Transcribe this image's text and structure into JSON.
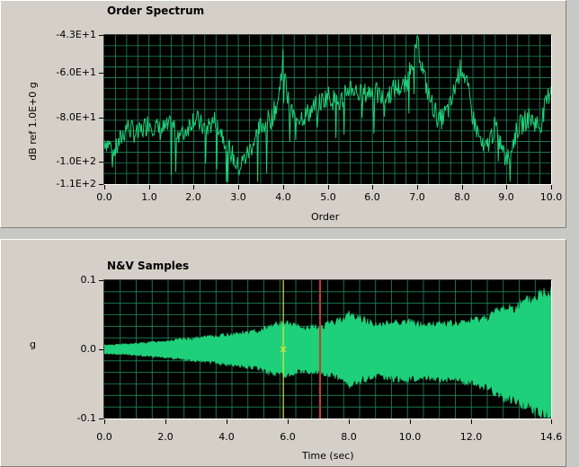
{
  "order_spectrum": {
    "title": "Order Spectrum",
    "ylabel": "dB ref 1.0E+0 g",
    "xlabel": "Order",
    "yticks": [
      "-4.3E+1",
      "-6.0E+1",
      "-8.0E+1",
      "-1.0E+2",
      "-1.1E+2"
    ],
    "xticks": [
      "0.0",
      "1.0",
      "2.0",
      "3.0",
      "4.0",
      "5.0",
      "6.0",
      "7.0",
      "8.0",
      "9.0",
      "10.0"
    ],
    "trace_color": "#1fd07a",
    "grid_color": "#1f8a5a"
  },
  "nv_samples": {
    "title": "N&V Samples",
    "ylabel": "g",
    "xlabel": "Time (sec)",
    "yticks": [
      "0.1",
      "0.0",
      "-0.1"
    ],
    "xticks": [
      "0.0",
      "2.0",
      "4.0",
      "6.0",
      "8.0",
      "10.0",
      "12.0",
      "14.6"
    ],
    "fill_color": "#1fd07a",
    "grid_color": "#1f8a5a",
    "cursor1_color": "#e0e040",
    "cursor2_color": "#c04030"
  },
  "chart_data": [
    {
      "type": "line",
      "title": "Order Spectrum",
      "xlabel": "Order",
      "ylabel": "dB ref 1.0E+0 g",
      "xlim": [
        0,
        10
      ],
      "ylim": [
        -110,
        -43
      ],
      "grid": true,
      "series": [
        {
          "x": [
            0,
            0.25,
            0.5,
            0.75,
            1,
            1.25,
            1.5,
            1.75,
            2,
            2.25,
            2.5,
            2.75,
            3,
            3.25,
            3.5,
            3.75,
            3.9,
            4,
            4.1,
            4.25,
            4.5,
            4.75,
            5,
            5.25,
            5.5,
            5.75,
            6,
            6.25,
            6.5,
            6.75,
            6.9,
            7,
            7.1,
            7.25,
            7.5,
            7.75,
            7.9,
            8,
            8.1,
            8.25,
            8.5,
            8.75,
            9,
            9.25,
            9.5,
            9.75,
            10
          ],
          "y": [
            -90,
            -95,
            -84,
            -88,
            -82,
            -86,
            -84,
            -88,
            -80,
            -85,
            -81,
            -92,
            -103,
            -95,
            -84,
            -80,
            -72,
            -52,
            -72,
            -80,
            -79,
            -75,
            -70,
            -74,
            -66,
            -70,
            -68,
            -72,
            -67,
            -66,
            -54,
            -45,
            -56,
            -70,
            -82,
            -75,
            -62,
            -57,
            -64,
            -80,
            -96,
            -84,
            -100,
            -85,
            -80,
            -84,
            -66
          ]
        }
      ]
    },
    {
      "type": "area",
      "title": "N&V Samples",
      "xlabel": "Time (sec)",
      "ylabel": "g",
      "xlim": [
        0,
        14.6
      ],
      "ylim": [
        -0.1,
        0.1
      ],
      "grid": true,
      "series": [
        {
          "x": [
            0,
            1,
            2,
            3,
            4,
            5,
            5.5,
            6,
            6.5,
            7,
            7.5,
            8,
            8.5,
            9,
            9.5,
            10,
            10.5,
            11,
            11.5,
            12,
            12.5,
            13,
            13.5,
            14,
            14.6
          ],
          "y": [
            0.006,
            0.008,
            0.012,
            0.016,
            0.021,
            0.026,
            0.035,
            0.037,
            0.03,
            0.032,
            0.038,
            0.05,
            0.042,
            0.034,
            0.04,
            0.039,
            0.034,
            0.038,
            0.036,
            0.041,
            0.046,
            0.058,
            0.062,
            0.072,
            0.088
          ]
        }
      ],
      "cursors_x": [
        5.85,
        7.05
      ]
    }
  ]
}
